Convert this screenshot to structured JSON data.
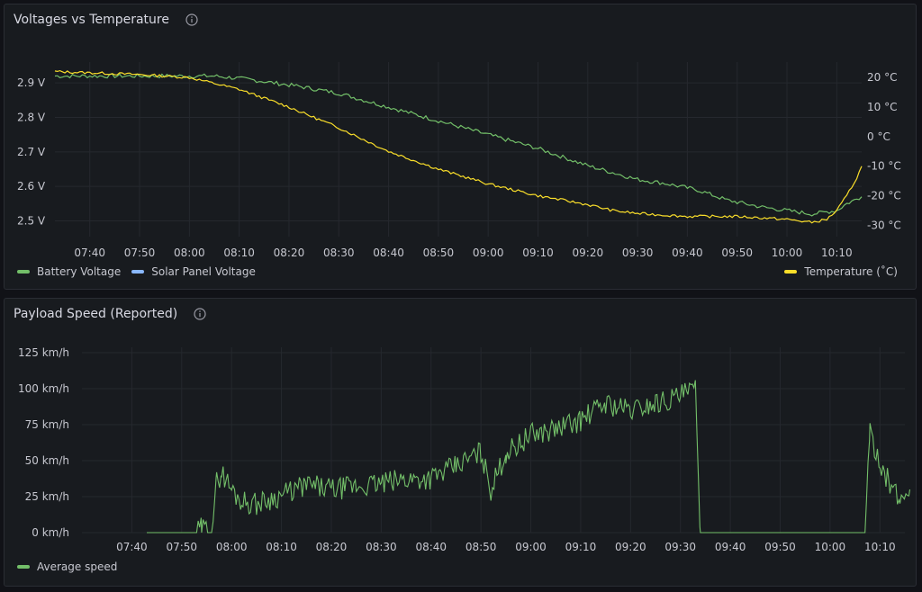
{
  "panels": {
    "voltages": {
      "title": "Voltages vs Temperature",
      "legend_left": [
        {
          "label": "Battery Voltage",
          "color": "#73bf69"
        },
        {
          "label": "Solar Panel Voltage",
          "color": "#8ab8ff"
        }
      ],
      "legend_right": [
        {
          "label": "Temperature (˚C)",
          "color": "#fade2a"
        }
      ]
    },
    "speed": {
      "title": "Payload Speed (Reported)",
      "legend": [
        {
          "label": "Average speed",
          "color": "#73bf69"
        }
      ]
    }
  },
  "chart_data": [
    {
      "type": "line",
      "title": "Voltages vs Temperature",
      "x_ticks": [
        "07:40",
        "07:50",
        "08:00",
        "08:10",
        "08:20",
        "08:30",
        "08:40",
        "08:50",
        "09:00",
        "09:10",
        "09:20",
        "09:30",
        "09:40",
        "09:50",
        "10:00",
        "10:10"
      ],
      "y_left": {
        "unit": "V",
        "ticks": [
          "2.5 V",
          "2.6 V",
          "2.7 V",
          "2.8 V",
          "2.9 V"
        ],
        "range": [
          2.47,
          2.95
        ]
      },
      "y_right": {
        "unit": "°C",
        "ticks": [
          "-30 °C",
          "-20 °C",
          "-10 °C",
          "0 °C",
          "10 °C",
          "20 °C"
        ],
        "range": [
          -32,
          24
        ]
      },
      "x_range": [
        "07:33",
        "10:15"
      ],
      "series": [
        {
          "name": "Battery Voltage",
          "axis": "left",
          "color": "#73bf69",
          "points": [
            [
              "07:33",
              2.92
            ],
            [
              "07:50",
              2.92
            ],
            [
              "08:05",
              2.92
            ],
            [
              "08:12",
              2.91
            ],
            [
              "08:22",
              2.89
            ],
            [
              "08:30",
              2.87
            ],
            [
              "08:40",
              2.83
            ],
            [
              "08:50",
              2.79
            ],
            [
              "09:00",
              2.75
            ],
            [
              "09:10",
              2.71
            ],
            [
              "09:20",
              2.66
            ],
            [
              "09:25",
              2.64
            ],
            [
              "09:30",
              2.62
            ],
            [
              "09:35",
              2.61
            ],
            [
              "09:42",
              2.59
            ],
            [
              "09:48",
              2.56
            ],
            [
              "09:55",
              2.54
            ],
            [
              "10:00",
              2.53
            ],
            [
              "10:05",
              2.52
            ],
            [
              "10:10",
              2.53
            ],
            [
              "10:12",
              2.55
            ],
            [
              "10:15",
              2.57
            ]
          ]
        },
        {
          "name": "Solar Panel Voltage",
          "axis": "left",
          "color": "#8ab8ff",
          "points": []
        },
        {
          "name": "Temperature (˚C)",
          "axis": "right",
          "color": "#fade2a",
          "points": [
            [
              "07:33",
              22
            ],
            [
              "07:50",
              21
            ],
            [
              "08:00",
              20
            ],
            [
              "08:05",
              18
            ],
            [
              "08:10",
              16
            ],
            [
              "08:20",
              10
            ],
            [
              "08:30",
              3
            ],
            [
              "08:40",
              -5
            ],
            [
              "08:50",
              -11
            ],
            [
              "09:00",
              -16
            ],
            [
              "09:10",
              -20
            ],
            [
              "09:20",
              -23
            ],
            [
              "09:25",
              -25
            ],
            [
              "09:30",
              -26
            ],
            [
              "09:40",
              -27
            ],
            [
              "09:50",
              -27
            ],
            [
              "10:00",
              -28
            ],
            [
              "10:05",
              -29
            ],
            [
              "10:08",
              -28
            ],
            [
              "10:10",
              -25
            ],
            [
              "10:12",
              -20
            ],
            [
              "10:14",
              -14
            ],
            [
              "10:15",
              -10
            ]
          ]
        }
      ]
    },
    {
      "type": "line",
      "title": "Payload Speed (Reported)",
      "x_ticks": [
        "07:40",
        "07:50",
        "08:00",
        "08:10",
        "08:20",
        "08:30",
        "08:40",
        "08:50",
        "09:00",
        "09:10",
        "09:20",
        "09:30",
        "09:40",
        "09:50",
        "10:00",
        "10:10"
      ],
      "y_left": {
        "unit": "km/h",
        "ticks": [
          "0 km/h",
          "25 km/h",
          "50 km/h",
          "75 km/h",
          "100 km/h",
          "125 km/h"
        ],
        "range": [
          0,
          125
        ]
      },
      "x_range": [
        "07:30",
        "10:15"
      ],
      "series": [
        {
          "name": "Average speed",
          "color": "#73bf69",
          "points": [
            [
              "07:43",
              0
            ],
            [
              "07:53",
              0
            ],
            [
              "07:54",
              3
            ],
            [
              "07:56",
              1
            ],
            [
              "07:57",
              35
            ],
            [
              "07:58",
              42
            ],
            [
              "08:00",
              30
            ],
            [
              "08:02",
              22
            ],
            [
              "08:05",
              20
            ],
            [
              "08:10",
              26
            ],
            [
              "08:15",
              33
            ],
            [
              "08:20",
              30
            ],
            [
              "08:25",
              32
            ],
            [
              "08:30",
              34
            ],
            [
              "08:35",
              37
            ],
            [
              "08:40",
              38
            ],
            [
              "08:45",
              46
            ],
            [
              "08:50",
              56
            ],
            [
              "08:52",
              30
            ],
            [
              "08:55",
              55
            ],
            [
              "09:00",
              68
            ],
            [
              "09:05",
              72
            ],
            [
              "09:10",
              78
            ],
            [
              "09:15",
              90
            ],
            [
              "09:20",
              85
            ],
            [
              "09:25",
              90
            ],
            [
              "09:30",
              95
            ],
            [
              "09:33",
              100
            ],
            [
              "09:34",
              0
            ],
            [
              "10:07",
              0
            ],
            [
              "10:08",
              68
            ],
            [
              "10:10",
              50
            ],
            [
              "10:12",
              33
            ],
            [
              "10:14",
              22
            ],
            [
              "10:16",
              30
            ]
          ]
        }
      ]
    }
  ]
}
